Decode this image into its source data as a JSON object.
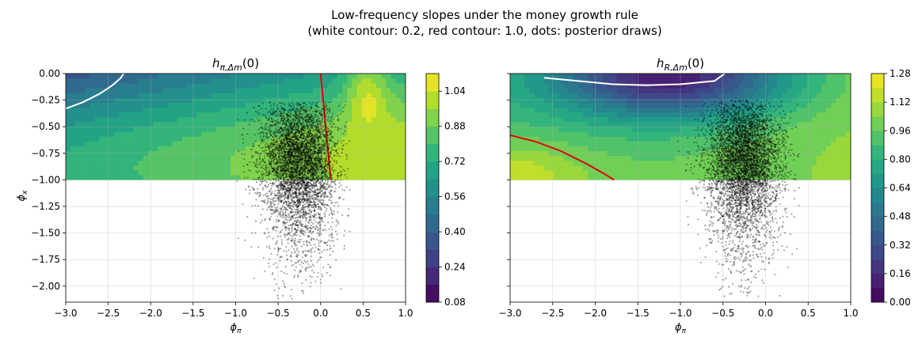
{
  "title_line1": "Low-frequency slopes under the money growth rule",
  "title_line2": "(white contour: 0.2, red contour: 1.0, dots: posterior draws)",
  "colors": {
    "viridis_stops": [
      "#440154",
      "#482777",
      "#3e4989",
      "#31688e",
      "#26828e",
      "#1f9e89",
      "#35b779",
      "#6ece58",
      "#b5de2b",
      "#fde725"
    ],
    "white_contour": "#ffffff",
    "red_contour": "#e8000b",
    "dots": "#000000"
  },
  "chart_data": [
    {
      "type": "heatmap",
      "panel": "left",
      "title": "h_{π,Δm}(0)",
      "xlabel": "ϕ_π",
      "ylabel": "ϕ_x",
      "xlim": [
        -3.0,
        1.0
      ],
      "ylim": [
        -2.15,
        0.0
      ],
      "contour_region_y": [
        -1.0,
        0.0
      ],
      "grid": true,
      "x_ticks": [
        "−3.0",
        "−2.5",
        "−2.0",
        "−1.5",
        "−1.0",
        "−0.5",
        "0.0",
        "0.5",
        "1.0"
      ],
      "y_ticks": [
        "0.00",
        "−0.25",
        "−0.50",
        "−0.75",
        "−1.00",
        "−1.25",
        "−1.50",
        "−1.75",
        "−2.00"
      ],
      "colorbar": {
        "min": 0.08,
        "max": 1.12,
        "levels": 13,
        "ticks": [
          "0.08",
          "0.24",
          "0.40",
          "0.56",
          "0.72",
          "0.88",
          "1.04"
        ]
      },
      "white_contour": {
        "level": 0.2,
        "x": [
          -3.0,
          -2.8,
          -2.6,
          -2.45,
          -2.35,
          -2.32
        ],
        "y": [
          -0.33,
          -0.27,
          -0.19,
          -0.11,
          -0.04,
          0.0
        ]
      },
      "red_contour": {
        "level": 1.0,
        "x": [
          0.0,
          0.03,
          0.06,
          0.09,
          0.12
        ],
        "y": [
          0.0,
          -0.25,
          -0.5,
          -0.75,
          -1.0
        ]
      },
      "posterior_draws": {
        "count": 5000,
        "center_x": -0.25,
        "center_y": -0.75,
        "x_range": [
          -1.25,
          0.35
        ],
        "y_range": [
          -2.12,
          -0.27
        ]
      }
    },
    {
      "type": "heatmap",
      "panel": "right",
      "title": "h_{R,Δm}(0)",
      "xlabel": "ϕ_π",
      "ylabel": "",
      "xlim": [
        -3.0,
        1.0
      ],
      "ylim": [
        -2.15,
        0.0
      ],
      "contour_region_y": [
        -1.0,
        0.0
      ],
      "grid": true,
      "x_ticks": [
        "−3.0",
        "−2.5",
        "−2.0",
        "−1.5",
        "−1.0",
        "−0.5",
        "0.0",
        "0.5",
        "1.0"
      ],
      "colorbar": {
        "min": 0.0,
        "max": 1.28,
        "levels": 16,
        "ticks": [
          "0.00",
          "0.16",
          "0.32",
          "0.48",
          "0.64",
          "0.80",
          "0.96",
          "1.12",
          "1.28"
        ]
      },
      "white_contour": {
        "level": 0.2,
        "x": [
          -2.6,
          -2.2,
          -1.8,
          -1.4,
          -1.0,
          -0.6,
          -0.48
        ],
        "y": [
          -0.04,
          -0.07,
          -0.1,
          -0.11,
          -0.1,
          -0.07,
          0.0
        ]
      },
      "red_contour": {
        "level": 1.0,
        "x": [
          -3.0,
          -2.7,
          -2.4,
          -2.1,
          -1.9,
          -1.78
        ],
        "y": [
          -0.58,
          -0.64,
          -0.73,
          -0.85,
          -0.94,
          -1.0
        ]
      },
      "posterior_draws": {
        "count": 5000,
        "center_x": -0.25,
        "center_y": -0.75,
        "x_range": [
          -1.05,
          0.4
        ],
        "y_range": [
          -2.1,
          -0.25
        ]
      }
    }
  ]
}
